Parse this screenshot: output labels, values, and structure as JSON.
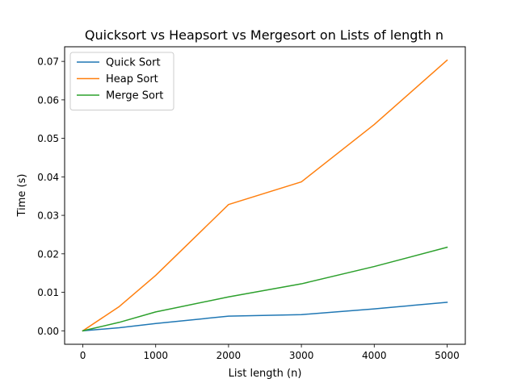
{
  "chart_data": {
    "type": "line",
    "title": "Quicksort vs Heapsort vs Mergesort on Lists of length n",
    "xlabel": "List length (n)",
    "ylabel": "Time (s)",
    "xlim": [
      -250,
      5250
    ],
    "ylim": [
      -0.0035,
      0.0738
    ],
    "xticks": [
      0,
      1000,
      2000,
      3000,
      4000,
      5000
    ],
    "xtick_labels": [
      "0",
      "1000",
      "2000",
      "3000",
      "4000",
      "5000"
    ],
    "yticks": [
      0.0,
      0.01,
      0.02,
      0.03,
      0.04,
      0.05,
      0.06,
      0.07
    ],
    "ytick_labels": [
      "0.00",
      "0.01",
      "0.02",
      "0.03",
      "0.04",
      "0.05",
      "0.06",
      "0.07"
    ],
    "grid": false,
    "legend_position": "top-left",
    "x": [
      0,
      500,
      1000,
      2000,
      3000,
      4000,
      5000
    ],
    "series": [
      {
        "name": "Quick Sort",
        "color": "#1f77b4",
        "values": [
          0.0,
          0.0008,
          0.0019,
          0.0038,
          0.0042,
          0.0057,
          0.0074
        ]
      },
      {
        "name": "Heap Sort",
        "color": "#ff7f0e",
        "values": [
          0.0,
          0.0063,
          0.0144,
          0.0328,
          0.0387,
          0.0536,
          0.0703
        ]
      },
      {
        "name": "Merge Sort",
        "color": "#2ca02c",
        "values": [
          0.0,
          0.0022,
          0.0049,
          0.0088,
          0.0122,
          0.0167,
          0.0217
        ]
      }
    ]
  }
}
